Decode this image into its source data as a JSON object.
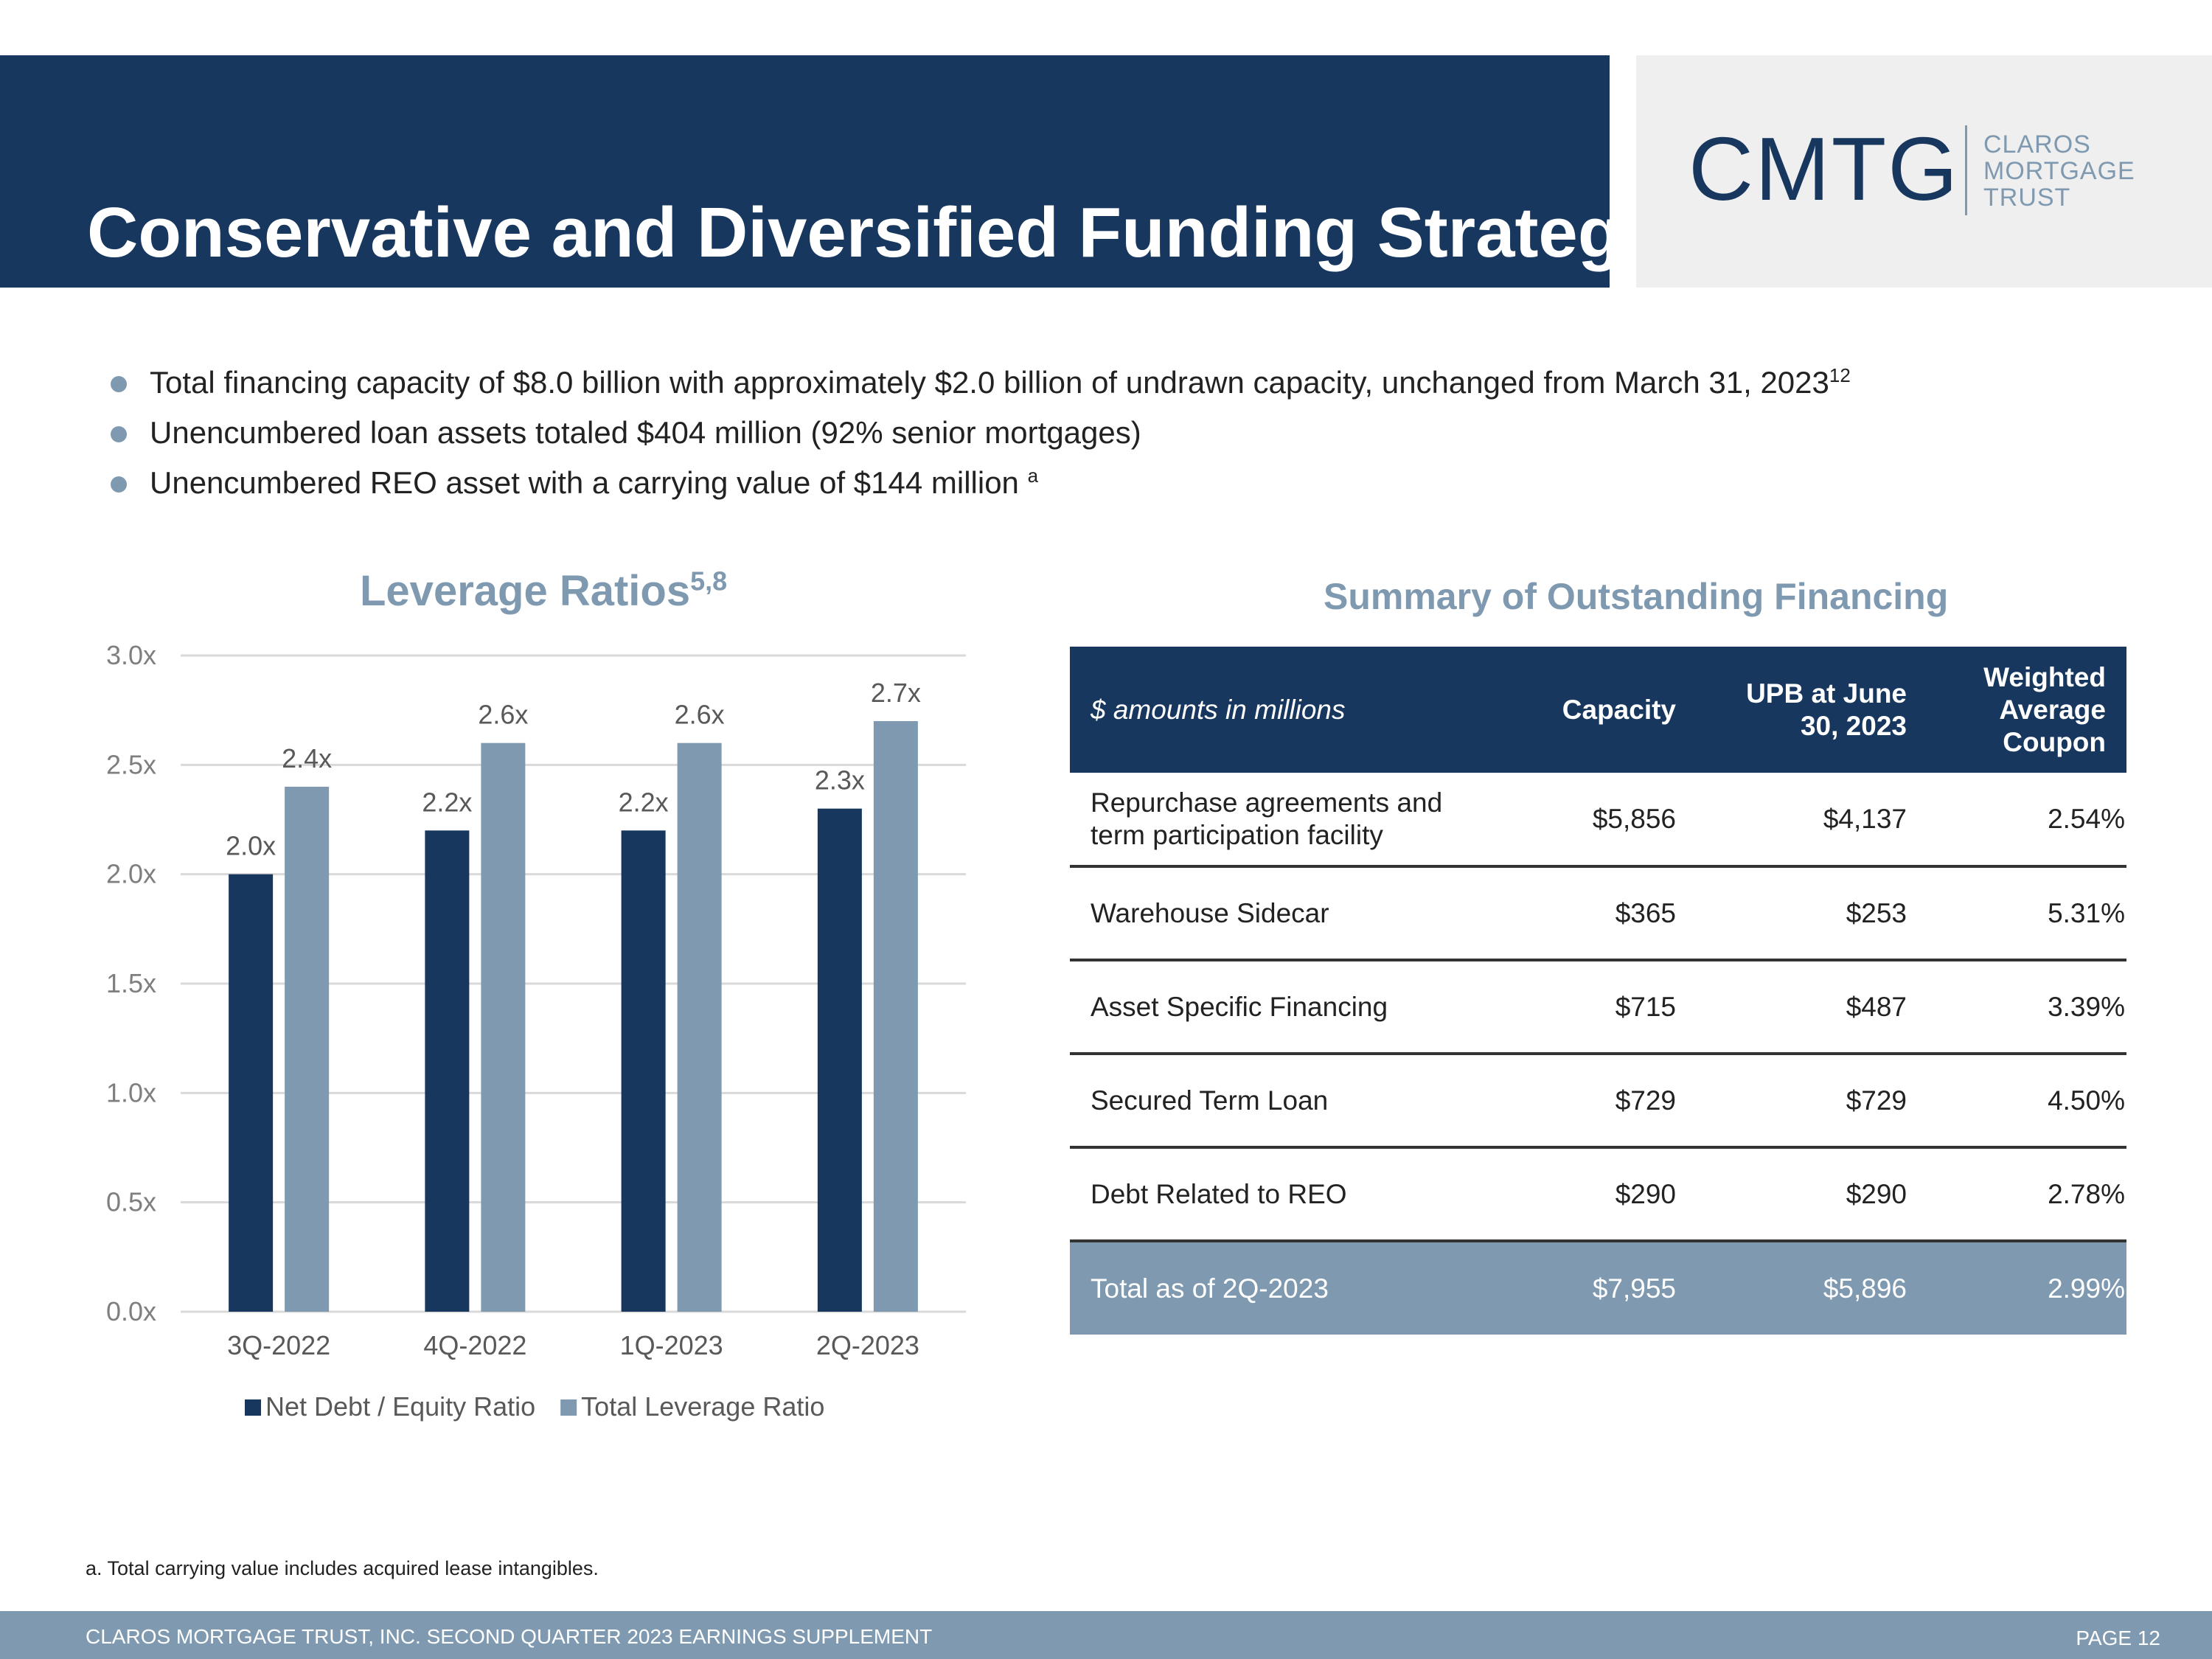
{
  "header": {
    "title": "Conservative and Diversified Funding Strategy"
  },
  "logo": {
    "mark": "CMTG",
    "words": [
      "CLAROS",
      "MORTGAGE",
      "TRUST"
    ],
    "colors": {
      "navy": "#17375e",
      "steel": "#7f9ab0"
    }
  },
  "bullets": [
    {
      "text": "Total financing capacity of $8.0 billion with approximately $2.0 billion of undrawn capacity, unchanged from March 31, 2023",
      "sup": "12"
    },
    {
      "text": "Unencumbered loan assets totaled $404 million (92% senior mortgages)",
      "sup": ""
    },
    {
      "text": "Unencumbered REO asset with a carrying value of $144 million ",
      "sup": "a"
    }
  ],
  "chart_title": {
    "text": "Leverage Ratios",
    "sup": "5,8"
  },
  "chart_data": {
    "type": "bar",
    "title": "Leverage Ratios",
    "categories": [
      "3Q-2022",
      "4Q-2022",
      "1Q-2023",
      "2Q-2023"
    ],
    "series": [
      {
        "name": "Net Debt / Equity Ratio",
        "values": [
          2.0,
          2.2,
          2.2,
          2.3
        ],
        "labels": [
          "2.0x",
          "2.2x",
          "2.2x",
          "2.3x"
        ],
        "color": "#17375e"
      },
      {
        "name": "Total Leverage Ratio",
        "values": [
          2.4,
          2.6,
          2.6,
          2.7
        ],
        "labels": [
          "2.4x",
          "2.6x",
          "2.6x",
          "2.7x"
        ],
        "color": "#7f9ab0"
      }
    ],
    "ylim": [
      0,
      3.0
    ],
    "yticks": [
      0,
      0.5,
      1.0,
      1.5,
      2.0,
      2.5,
      3.0
    ],
    "ytick_labels": [
      "0.0x",
      "0.5x",
      "1.0x",
      "1.5x",
      "2.0x",
      "2.5x",
      "3.0x"
    ],
    "grid": true,
    "legend": "bottom",
    "xlabel": "",
    "ylabel": ""
  },
  "financing": {
    "title": "Summary of Outstanding Financing",
    "columns": [
      "$ amounts in millions",
      "Capacity",
      "UPB at June 30, 2023",
      "Weighted Average Coupon"
    ],
    "rows": [
      [
        "Repurchase agreements and term participation facility",
        "$5,856",
        "$4,137",
        "2.54%"
      ],
      [
        "Warehouse Sidecar",
        "$365",
        "$253",
        "5.31%"
      ],
      [
        "Asset Specific Financing",
        "$715",
        "$487",
        "3.39%"
      ],
      [
        "Secured Term Loan",
        "$729",
        "$729",
        "4.50%"
      ],
      [
        "Debt Related to REO",
        "$290",
        "$290",
        "2.78%"
      ]
    ],
    "total": [
      "Total as of 2Q-2023",
      "$7,955",
      "$5,896",
      "2.99%"
    ]
  },
  "footnote": "a. Total carrying value includes acquired lease intangibles.",
  "footer": {
    "left": "CLAROS MORTGAGE TRUST, INC. SECOND QUARTER 2023 EARNINGS SUPPLEMENT",
    "right": "PAGE 12"
  }
}
